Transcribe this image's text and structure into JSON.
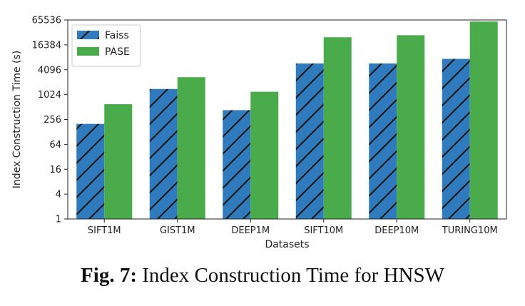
{
  "chart_data": {
    "type": "bar",
    "categories": [
      "SIFT1M",
      "GIST1M",
      "DEEP1M",
      "SIFT10M",
      "DEEP10M",
      "TURING10M"
    ],
    "series": [
      {
        "name": "Faiss",
        "values": [
          200,
          1400,
          430,
          5800,
          5800,
          7500
        ],
        "color": "#2f7bbd",
        "hatch": "diagonal"
      },
      {
        "name": "PASE",
        "values": [
          600,
          2700,
          1200,
          25000,
          28000,
          60000
        ],
        "color": "#4aab4a"
      }
    ],
    "xlabel": "Datasets",
    "ylabel": "Index Construction Time (s)",
    "yscale": "log2",
    "ylim": [
      1,
      65536
    ],
    "yticks": [
      "1",
      "4",
      "16",
      "64",
      "256",
      "1024",
      "4096",
      "16384",
      "65536"
    ],
    "legend": "top-left",
    "grid": false
  },
  "caption": {
    "label": "Fig. 7:",
    "text": "Index Construction Time for HNSW"
  }
}
